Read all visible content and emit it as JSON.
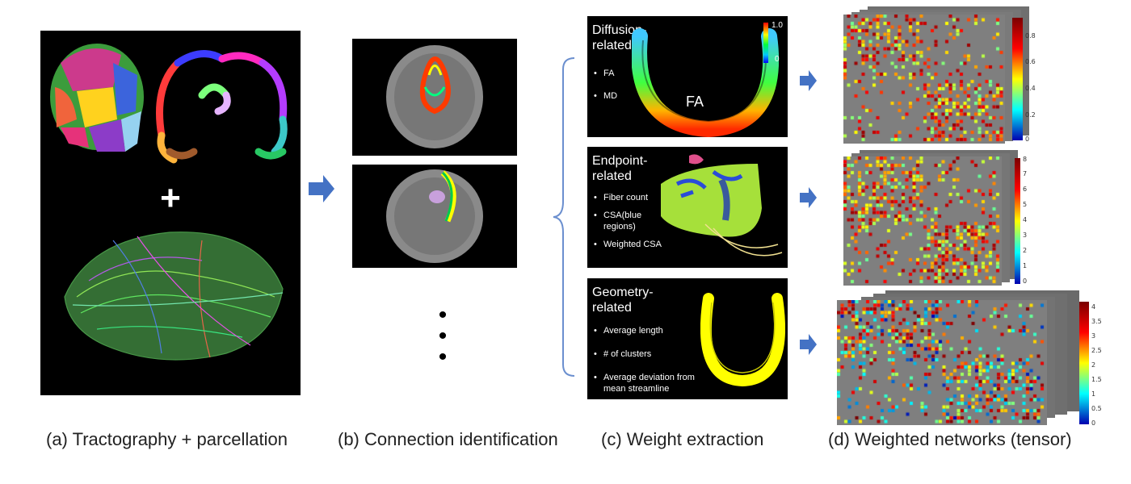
{
  "captions": {
    "a": "(a) Tractography + parcellation",
    "b": "(b) Connection identification",
    "c": "(c) Weight extraction",
    "d": "(d) Weighted networks (tensor)"
  },
  "panel_a": {
    "plus": "+"
  },
  "panel_b": {
    "more": "•\n•\n•"
  },
  "cards": [
    {
      "title_line1": "Diffusion-",
      "title_line2": "related",
      "bullets": [
        "FA",
        "MD"
      ],
      "overlay": "FA",
      "colorbar_top": "1.0",
      "colorbar_bottom": "0"
    },
    {
      "title_line1": "Endpoint-",
      "title_line2": "related",
      "bullets": [
        "Fiber count",
        "CSA(blue regions)",
        "Weighted CSA"
      ]
    },
    {
      "title_line1": "Geometry-",
      "title_line2": "related",
      "bullets": [
        "Average length",
        "# of clusters",
        "Average deviation from mean streamline"
      ]
    }
  ],
  "colorbars": [
    {
      "labels": [
        "0.8",
        "0.6",
        "0.4",
        "0.2",
        "0"
      ],
      "colors": [
        "#7a0000",
        "#ff0000",
        "#ffff00",
        "#00ffff",
        "#0000b0"
      ]
    },
    {
      "labels": [
        "8",
        "7",
        "6",
        "5",
        "4",
        "3",
        "2",
        "1",
        "0"
      ],
      "colors": [
        "#7a0000",
        "#ff0000",
        "#ffff00",
        "#00ffff",
        "#0000b0"
      ]
    },
    {
      "labels": [
        "4",
        "3.5",
        "3",
        "2.5",
        "2",
        "1.5",
        "1",
        "0.5",
        "0"
      ],
      "colors": [
        "#7a0000",
        "#ff0000",
        "#ffff00",
        "#00ffff",
        "#0000b0"
      ]
    }
  ],
  "colors": {
    "arrow": "#4472c4",
    "brace": "#6b8fcf",
    "matrix_bg": "#7f7f7f"
  }
}
